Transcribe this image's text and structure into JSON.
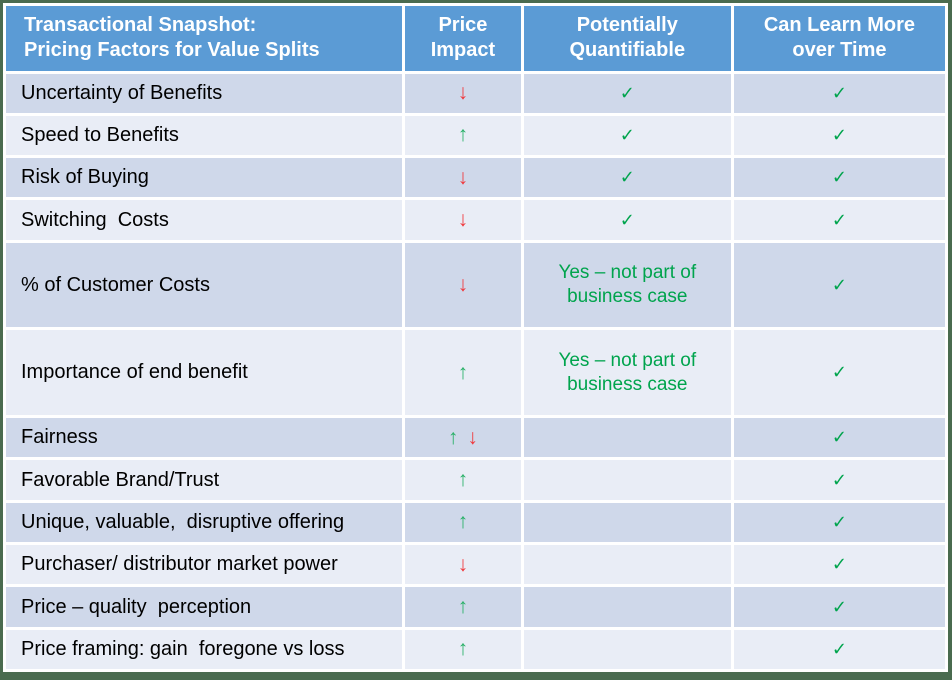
{
  "title": "Transactional Snapshot: Pricing Factors for Value Splits",
  "table": {
    "headers": {
      "factor": "Transactional Snapshot:\nPricing Factors for Value Splits",
      "price_impact": "Price\nImpact",
      "quantifiable": "Potentially\nQuantifiable",
      "learn_more": "Can Learn More\nover Time"
    },
    "icons": {
      "up_arrow": "↑",
      "down_arrow": "↓",
      "checkmark": "✓"
    },
    "rows": [
      {
        "factor": "Uncertainty of Benefits",
        "up": "",
        "down": "↓",
        "quantifiable": "✓",
        "learn_more": "✓"
      },
      {
        "factor": "Speed to Benefits",
        "up": "↑",
        "down": "",
        "quantifiable": "✓",
        "learn_more": "✓"
      },
      {
        "factor": "Risk of Buying",
        "up": "",
        "down": "↓",
        "quantifiable": "✓",
        "learn_more": "✓"
      },
      {
        "factor": "Switching  Costs",
        "up": "",
        "down": "↓",
        "quantifiable": "✓",
        "learn_more": "✓"
      },
      {
        "factor": "% of Customer Costs",
        "up": "",
        "down": "↓",
        "quantifiable": "Yes – not part of business case",
        "learn_more": "✓"
      },
      {
        "factor": "Importance of end benefit",
        "up": "↑",
        "down": "",
        "quantifiable": "Yes – not part of business case",
        "learn_more": "✓"
      },
      {
        "factor": "Fairness",
        "up": "↑",
        "down": "↓",
        "quantifiable": "",
        "learn_more": "✓"
      },
      {
        "factor": "Favorable Brand/Trust",
        "up": "↑",
        "down": "",
        "quantifiable": "",
        "learn_more": "✓"
      },
      {
        "factor": "Unique, valuable,  disruptive offering",
        "up": "↑",
        "down": "",
        "quantifiable": "",
        "learn_more": "✓"
      },
      {
        "factor": "Purchaser/ distributor market power",
        "up": "",
        "down": "↓",
        "quantifiable": "",
        "learn_more": "✓"
      },
      {
        "factor": "Price – quality  perception",
        "up": "↑",
        "down": "",
        "quantifiable": "",
        "learn_more": "✓"
      },
      {
        "factor": "Price framing: gain  foregone vs loss",
        "up": "↑",
        "down": "",
        "quantifiable": "",
        "learn_more": "✓"
      }
    ]
  },
  "colors": {
    "header-bg": "#5B9BD5",
    "header-text": "#FFFFFF",
    "row-dark": "#CFD8EA",
    "row-light": "#E9EDF6",
    "frame-green": "#4A6B4F",
    "check-green": "#00A44D",
    "arrow-green": "#2BB169",
    "arrow-red": "#F0393D",
    "body-text": "#000000"
  }
}
